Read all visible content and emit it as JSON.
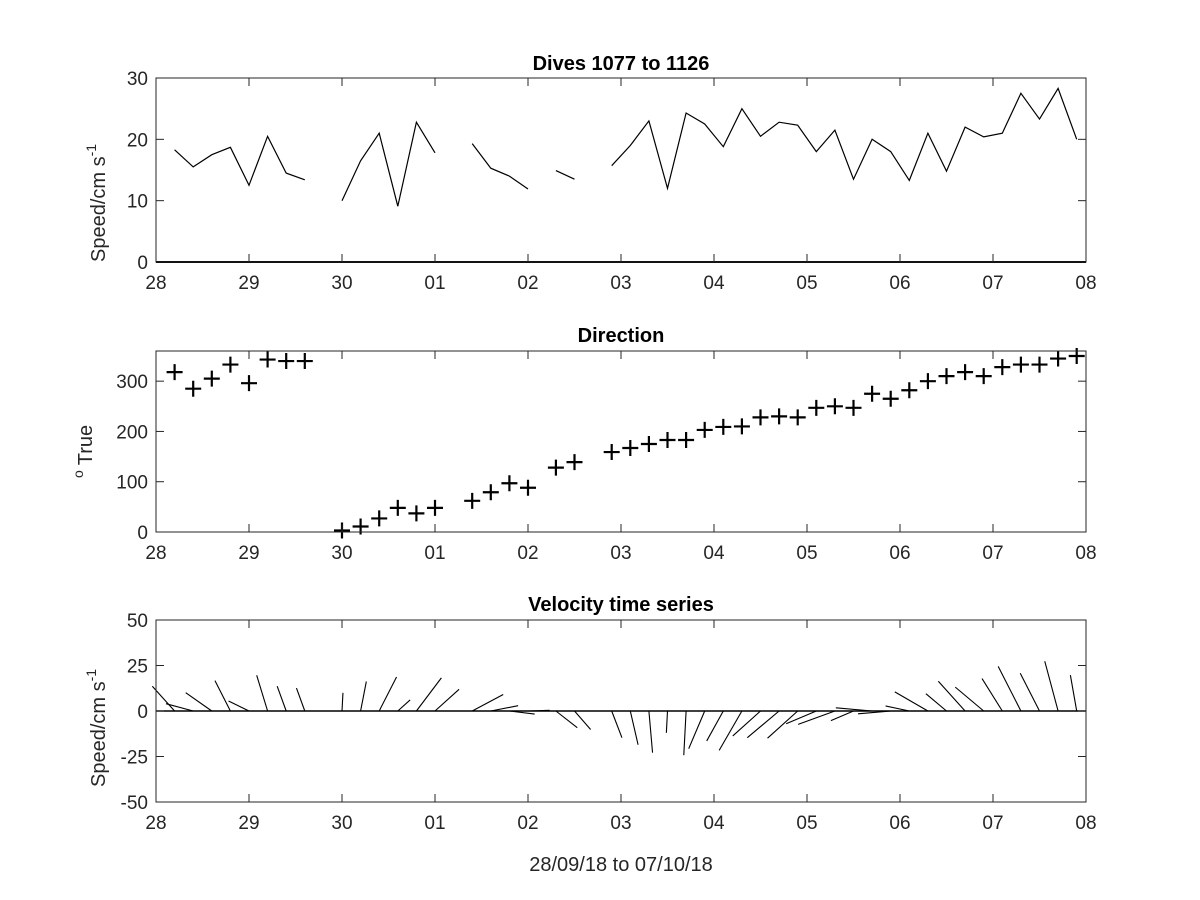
{
  "chart_data": [
    {
      "type": "line",
      "title": "Dives 1077 to 1126",
      "ylabel": "Speed/cm s",
      "ylabel_superscript": "-1",
      "xlim": [
        28,
        38
      ],
      "ylim": [
        0,
        30
      ],
      "xticks": [
        "28",
        "29",
        "30",
        "01",
        "02",
        "03",
        "04",
        "05",
        "06",
        "07",
        "08"
      ],
      "yticks": [
        "0",
        "10",
        "20",
        "30"
      ],
      "series": [
        {
          "x": [
            28.2,
            28.4,
            28.6,
            28.8,
            29.0,
            29.2,
            29.4,
            29.6
          ],
          "y": [
            18.3,
            15.5,
            17.5,
            18.7,
            12.5,
            20.5,
            14.5,
            13.4
          ]
        },
        {
          "x": [
            30.0,
            30.2,
            30.4,
            30.6,
            30.8,
            31.0
          ],
          "y": [
            10.0,
            16.5,
            21.0,
            9.1,
            22.8,
            17.8
          ]
        },
        {
          "x": [
            31.4,
            31.6,
            31.8,
            32.0
          ],
          "y": [
            19.3,
            15.3,
            14.0,
            11.9
          ]
        },
        {
          "x": [
            32.3,
            32.5
          ],
          "y": [
            14.9,
            13.5
          ]
        },
        {
          "x": [
            32.9,
            33.1,
            33.3,
            33.5,
            33.7,
            33.9,
            34.1,
            34.3,
            34.5,
            34.7,
            34.9,
            35.1,
            35.3,
            35.5,
            35.7,
            35.9,
            36.1,
            36.3,
            36.5,
            36.7,
            36.9,
            37.1,
            37.3,
            37.5,
            37.7,
            37.9
          ],
          "y": [
            15.7,
            19.0,
            23.0,
            12.0,
            24.3,
            22.5,
            18.8,
            25.0,
            20.5,
            22.8,
            22.3,
            18.0,
            21.5,
            13.5,
            20.0,
            18.0,
            13.3,
            21.0,
            14.8,
            22.0,
            20.4,
            21.0,
            27.5,
            23.3,
            28.3,
            20.0
          ]
        }
      ]
    },
    {
      "type": "scatter",
      "title": "Direction",
      "ylabel": "True",
      "ylabel_superscript": "o",
      "xlim": [
        28,
        38
      ],
      "ylim": [
        0,
        360
      ],
      "xticks": [
        "28",
        "29",
        "30",
        "01",
        "02",
        "03",
        "04",
        "05",
        "06",
        "07",
        "08"
      ],
      "yticks": [
        "0",
        "100",
        "200",
        "300"
      ],
      "x": [
        28.2,
        28.4,
        28.6,
        28.8,
        29.0,
        29.2,
        29.4,
        29.6,
        30.0,
        30.2,
        30.4,
        30.6,
        30.8,
        31.0,
        31.4,
        31.6,
        31.8,
        32.0,
        32.3,
        32.5,
        32.9,
        33.1,
        33.3,
        33.5,
        33.7,
        33.9,
        34.1,
        34.3,
        34.5,
        34.7,
        34.9,
        35.1,
        35.3,
        35.5,
        35.7,
        35.9,
        36.1,
        36.3,
        36.5,
        36.7,
        36.9,
        37.1,
        37.3,
        37.5,
        37.7,
        37.9
      ],
      "y": [
        318,
        285,
        305,
        333,
        296,
        343,
        340,
        340,
        3,
        11,
        27,
        48,
        37,
        48,
        62,
        79,
        97,
        88,
        128,
        139,
        159,
        167,
        175,
        183,
        183,
        203,
        209,
        210,
        228,
        230,
        228,
        247,
        250,
        247,
        275,
        265,
        282,
        300,
        310,
        318,
        310,
        328,
        333,
        333,
        345,
        350
      ]
    },
    {
      "type": "quiver",
      "title": "Velocity time series",
      "ylabel": "Speed/cm s",
      "ylabel_superscript": "-1",
      "xlabel": "28/09/18 to 07/10/18",
      "xlim": [
        28,
        38
      ],
      "ylim": [
        -50,
        50
      ],
      "xticks": [
        "28",
        "29",
        "30",
        "01",
        "02",
        "03",
        "04",
        "05",
        "06",
        "07",
        "08"
      ],
      "yticks": [
        "50",
        "25",
        "0",
        "-25",
        "-50"
      ],
      "time": [
        28.2,
        28.4,
        28.6,
        28.8,
        29.0,
        29.2,
        29.4,
        29.6,
        30.0,
        30.2,
        30.4,
        30.6,
        30.8,
        31.0,
        31.4,
        31.6,
        31.8,
        32.0,
        32.3,
        32.5,
        32.9,
        33.1,
        33.3,
        33.5,
        33.7,
        33.9,
        34.1,
        34.3,
        34.5,
        34.7,
        34.9,
        35.1,
        35.3,
        35.5,
        35.7,
        35.9,
        36.1,
        36.3,
        36.5,
        36.7,
        36.9,
        37.1,
        37.3,
        37.5,
        37.7,
        37.9
      ],
      "speed": [
        18.3,
        15.5,
        17.5,
        18.7,
        12.5,
        20.5,
        14.5,
        13.4,
        10.0,
        16.5,
        21.0,
        9.1,
        22.8,
        17.8,
        19.3,
        15.3,
        14.0,
        11.9,
        14.9,
        13.5,
        15.7,
        19.0,
        23.0,
        12.0,
        24.3,
        22.5,
        18.8,
        25.0,
        20.5,
        22.8,
        22.3,
        18.0,
        21.5,
        13.5,
        20.0,
        18.0,
        13.3,
        21.0,
        14.8,
        22.0,
        20.4,
        21.0,
        27.5,
        23.3,
        28.3,
        20.0
      ],
      "direction": [
        318,
        285,
        305,
        333,
        296,
        343,
        340,
        340,
        3,
        11,
        27,
        48,
        37,
        48,
        62,
        79,
        97,
        88,
        128,
        139,
        159,
        167,
        175,
        183,
        183,
        203,
        209,
        210,
        228,
        230,
        228,
        247,
        250,
        247,
        275,
        265,
        282,
        300,
        310,
        318,
        310,
        328,
        333,
        333,
        345,
        350
      ]
    }
  ]
}
